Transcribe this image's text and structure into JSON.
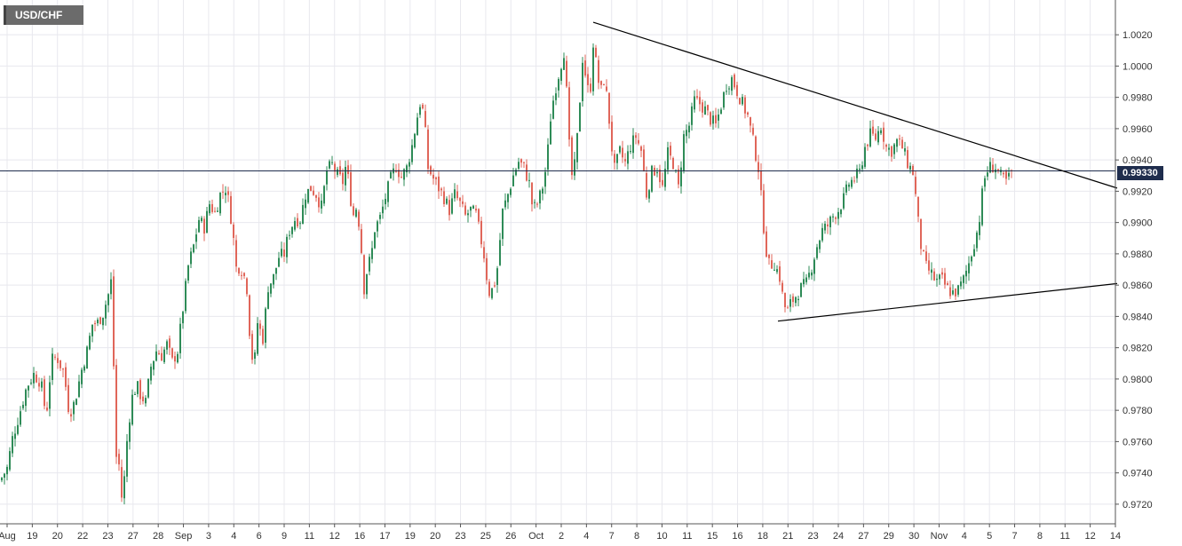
{
  "symbol": "USD/CHF",
  "current_price_label": "0.99330",
  "colors": {
    "up": "#2e8b57",
    "down": "#e0665a",
    "grid": "#e8e8ee",
    "current_line": "#1f2d4d",
    "trendline": "#000000"
  },
  "chart_data": {
    "type": "candlestick",
    "title": "",
    "xlabel": "",
    "ylabel": "",
    "ylim": [
      0.9712,
      1.0032
    ],
    "y_ticks": [
      0.972,
      0.974,
      0.976,
      0.978,
      0.98,
      0.982,
      0.984,
      0.986,
      0.988,
      0.99,
      0.992,
      0.994,
      0.996,
      0.998,
      1.0,
      1.002
    ],
    "y_tick_labels": [
      "0.9720",
      "0.9740",
      "0.9760",
      "0.9780",
      "0.9800",
      "0.9820",
      "0.9840",
      "0.9860",
      "0.9880",
      "0.9900",
      "0.9920",
      "0.9940",
      "0.9960",
      "0.9980",
      "1.0000",
      "1.0020"
    ],
    "x_tick_labels": [
      "Aug",
      "19",
      "20",
      "22",
      "23",
      "27",
      "28",
      "Sep",
      "3",
      "4",
      "6",
      "9",
      "11",
      "12",
      "16",
      "17",
      "19",
      "20",
      "23",
      "25",
      "26",
      "Oct",
      "2",
      "4",
      "7",
      "8",
      "10",
      "11",
      "15",
      "16",
      "18",
      "21",
      "23",
      "24",
      "27",
      "29",
      "30",
      "Nov",
      "4",
      "5",
      "7",
      "8",
      "11",
      "12",
      "14"
    ],
    "current_price": 0.9933,
    "close_path": [
      [
        0,
        0.9735
      ],
      [
        8,
        0.9743
      ],
      [
        14,
        0.9762
      ],
      [
        22,
        0.9778
      ],
      [
        30,
        0.9795
      ],
      [
        38,
        0.9803
      ],
      [
        46,
        0.9798
      ],
      [
        52,
        0.9776
      ],
      [
        58,
        0.9812
      ],
      [
        64,
        0.9814
      ],
      [
        72,
        0.9804
      ],
      [
        78,
        0.9778
      ],
      [
        84,
        0.9785
      ],
      [
        92,
        0.9806
      ],
      [
        98,
        0.9818
      ],
      [
        104,
        0.9835
      ],
      [
        110,
        0.9836
      ],
      [
        116,
        0.9842
      ],
      [
        122,
        0.9854
      ],
      [
        126,
        0.9865
      ],
      [
        130,
        0.9752
      ],
      [
        134,
        0.9745
      ],
      [
        138,
        0.9718
      ],
      [
        142,
        0.9755
      ],
      [
        148,
        0.9787
      ],
      [
        154,
        0.9796
      ],
      [
        158,
        0.979
      ],
      [
        164,
        0.9785
      ],
      [
        170,
        0.9808
      ],
      [
        176,
        0.9818
      ],
      [
        182,
        0.9815
      ],
      [
        188,
        0.9822
      ],
      [
        194,
        0.9811
      ],
      [
        200,
        0.9818
      ],
      [
        206,
        0.9845
      ],
      [
        212,
        0.9872
      ],
      [
        218,
        0.9885
      ],
      [
        224,
        0.9902
      ],
      [
        230,
        0.9897
      ],
      [
        236,
        0.9912
      ],
      [
        242,
        0.9906
      ],
      [
        248,
        0.9918
      ],
      [
        254,
        0.9922
      ],
      [
        258,
        0.9912
      ],
      [
        262,
        0.9895
      ],
      [
        266,
        0.9871
      ],
      [
        270,
        0.9872
      ],
      [
        274,
        0.9868
      ],
      [
        278,
        0.9858
      ],
      [
        282,
        0.9822
      ],
      [
        286,
        0.9806
      ],
      [
        290,
        0.9836
      ],
      [
        296,
        0.9826
      ],
      [
        302,
        0.9859
      ],
      [
        308,
        0.9865
      ],
      [
        314,
        0.9878
      ],
      [
        320,
        0.988
      ],
      [
        326,
        0.9895
      ],
      [
        332,
        0.9902
      ],
      [
        338,
        0.9902
      ],
      [
        344,
        0.9918
      ],
      [
        350,
        0.9922
      ],
      [
        356,
        0.9918
      ],
      [
        362,
        0.991
      ],
      [
        368,
        0.9933
      ],
      [
        374,
        0.9937
      ],
      [
        380,
        0.993
      ],
      [
        386,
        0.9926
      ],
      [
        390,
        0.9938
      ],
      [
        394,
        0.9918
      ],
      [
        398,
        0.9905
      ],
      [
        402,
        0.9911
      ],
      [
        406,
        0.989
      ],
      [
        410,
        0.9858
      ],
      [
        414,
        0.9872
      ],
      [
        418,
        0.9878
      ],
      [
        422,
        0.9896
      ],
      [
        428,
        0.9903
      ],
      [
        434,
        0.9916
      ],
      [
        440,
        0.9928
      ],
      [
        446,
        0.9936
      ],
      [
        452,
        0.9929
      ],
      [
        458,
        0.9935
      ],
      [
        464,
        0.9949
      ],
      [
        470,
        0.9968
      ],
      [
        474,
        0.9979
      ],
      [
        478,
        0.9964
      ],
      [
        482,
        0.9935
      ],
      [
        488,
        0.9928
      ],
      [
        494,
        0.9922
      ],
      [
        500,
        0.9916
      ],
      [
        506,
        0.9908
      ],
      [
        512,
        0.9918
      ],
      [
        518,
        0.9912
      ],
      [
        524,
        0.9904
      ],
      [
        530,
        0.9908
      ],
      [
        536,
        0.9905
      ],
      [
        542,
        0.9888
      ],
      [
        546,
        0.9876
      ],
      [
        550,
        0.9855
      ],
      [
        556,
        0.9858
      ],
      [
        560,
        0.9871
      ],
      [
        566,
        0.9907
      ],
      [
        572,
        0.9918
      ],
      [
        578,
        0.993
      ],
      [
        584,
        0.9939
      ],
      [
        590,
        0.9935
      ],
      [
        596,
        0.9925
      ],
      [
        600,
        0.9908
      ],
      [
        606,
        0.9913
      ],
      [
        612,
        0.9925
      ],
      [
        616,
        0.994
      ],
      [
        620,
        0.9967
      ],
      [
        624,
        0.9982
      ],
      [
        628,
        0.9992
      ],
      [
        632,
        1.0002
      ],
      [
        636,
        1.0012
      ],
      [
        640,
        0.9955
      ],
      [
        644,
        0.993
      ],
      [
        648,
        0.9938
      ],
      [
        652,
        0.997
      ],
      [
        656,
        1.0005
      ],
      [
        660,
        0.9992
      ],
      [
        664,
        0.9978
      ],
      [
        668,
        1.0015
      ],
      [
        672,
        0.9998
      ],
      [
        676,
        0.9982
      ],
      [
        680,
        0.9991
      ],
      [
        684,
        0.9978
      ],
      [
        688,
        0.9952
      ],
      [
        692,
        0.9934
      ],
      [
        698,
        0.9945
      ],
      [
        704,
        0.9938
      ],
      [
        710,
        0.9949
      ],
      [
        716,
        0.9955
      ],
      [
        722,
        0.9946
      ],
      [
        728,
        0.9918
      ],
      [
        734,
        0.9932
      ],
      [
        740,
        0.9935
      ],
      [
        746,
        0.9922
      ],
      [
        752,
        0.9944
      ],
      [
        758,
        0.9938
      ],
      [
        764,
        0.9922
      ],
      [
        770,
        0.9955
      ],
      [
        776,
        0.9962
      ],
      [
        782,
        0.9978
      ],
      [
        788,
        0.9976
      ],
      [
        794,
        0.9972
      ],
      [
        800,
        0.9966
      ],
      [
        806,
        0.9962
      ],
      [
        812,
        0.9975
      ],
      [
        818,
        0.9988
      ],
      [
        824,
        0.9992
      ],
      [
        830,
        0.9984
      ],
      [
        836,
        0.9976
      ],
      [
        842,
        0.9968
      ],
      [
        848,
        0.9952
      ],
      [
        854,
        0.9935
      ],
      [
        858,
        0.991
      ],
      [
        862,
        0.9885
      ],
      [
        866,
        0.9873
      ],
      [
        872,
        0.9874
      ],
      [
        878,
        0.9865
      ],
      [
        882,
        0.985
      ],
      [
        886,
        0.9842
      ],
      [
        890,
        0.9848
      ],
      [
        896,
        0.9853
      ],
      [
        902,
        0.9858
      ],
      [
        908,
        0.9861
      ],
      [
        914,
        0.9872
      ],
      [
        920,
        0.9885
      ],
      [
        926,
        0.9895
      ],
      [
        932,
        0.9898
      ],
      [
        938,
        0.9904
      ],
      [
        944,
        0.9908
      ],
      [
        950,
        0.9915
      ],
      [
        956,
        0.9925
      ],
      [
        962,
        0.9928
      ],
      [
        968,
        0.9932
      ],
      [
        974,
        0.9948
      ],
      [
        980,
        0.9956
      ],
      [
        986,
        0.9954
      ],
      [
        992,
        0.9962
      ],
      [
        998,
        0.9948
      ],
      [
        1004,
        0.9946
      ],
      [
        1010,
        0.9952
      ],
      [
        1016,
        0.9948
      ],
      [
        1022,
        0.9938
      ],
      [
        1028,
        0.9932
      ],
      [
        1032,
        0.9912
      ],
      [
        1036,
        0.9888
      ],
      [
        1042,
        0.9872
      ],
      [
        1048,
        0.9868
      ],
      [
        1054,
        0.9862
      ],
      [
        1060,
        0.9864
      ],
      [
        1066,
        0.9858
      ],
      [
        1072,
        0.9855
      ],
      [
        1078,
        0.9856
      ],
      [
        1084,
        0.9862
      ],
      [
        1090,
        0.9872
      ],
      [
        1096,
        0.9885
      ],
      [
        1102,
        0.9898
      ],
      [
        1106,
        0.9918
      ],
      [
        1110,
        0.9932
      ],
      [
        1116,
        0.9936
      ],
      [
        1122,
        0.9935
      ],
      [
        1128,
        0.9928
      ],
      [
        1134,
        0.9926
      ],
      [
        1140,
        0.9933
      ]
    ],
    "trendlines": [
      {
        "name": "descending",
        "from": [
          668,
          1.0028
        ],
        "to": [
          1258,
          0.9922
        ]
      },
      {
        "name": "ascending",
        "from": [
          876,
          0.9837
        ],
        "to": [
          1258,
          0.9861
        ]
      }
    ]
  }
}
